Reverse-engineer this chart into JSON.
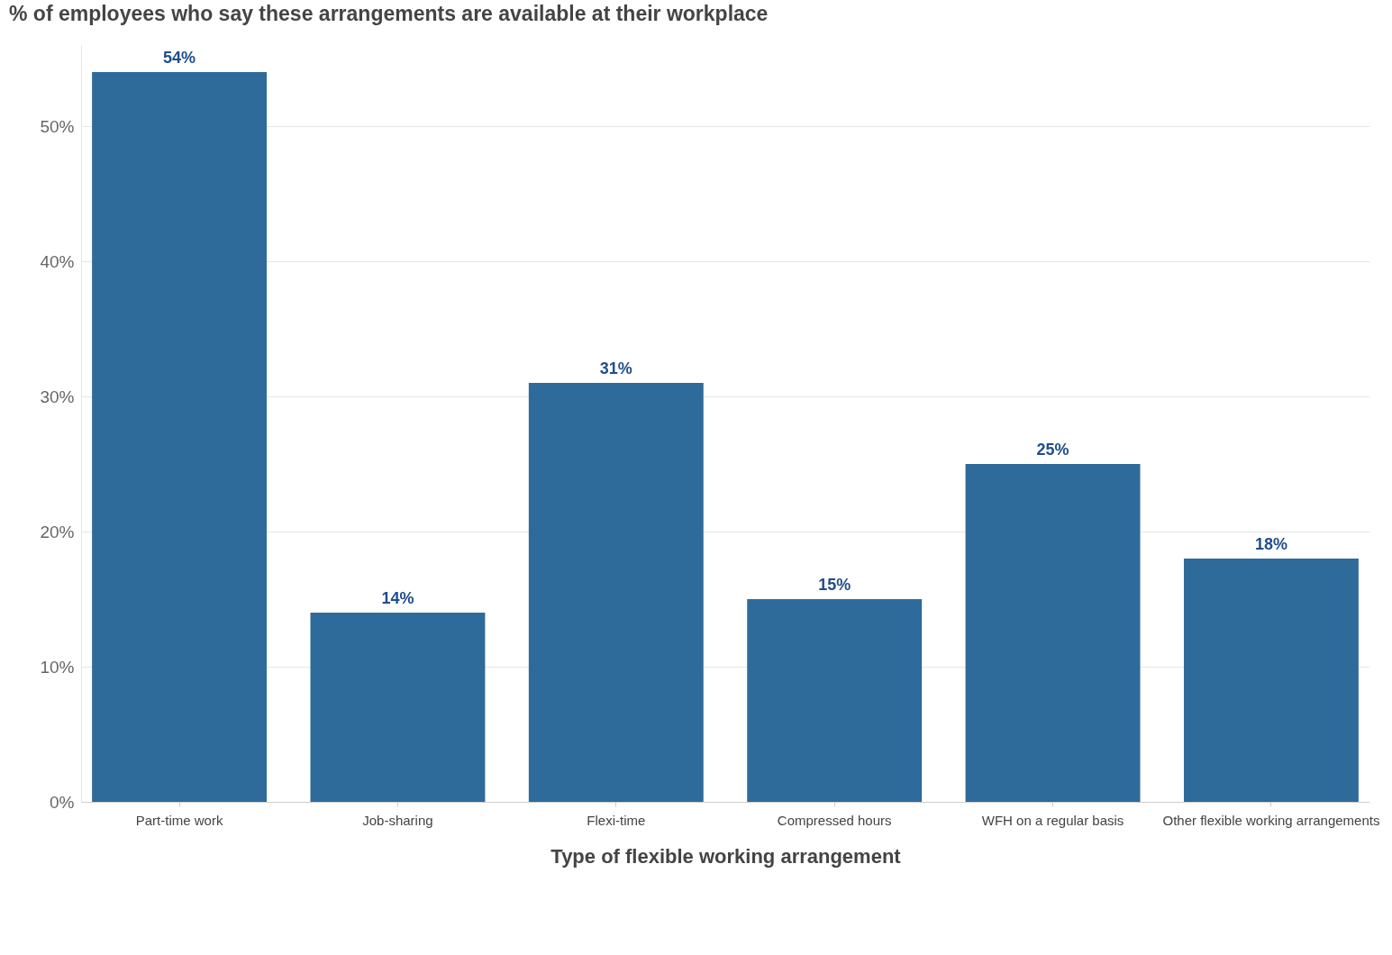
{
  "chart_data": {
    "type": "bar",
    "title": "% of employees who say these arrangements are available at their workplace",
    "xlabel": "Type of flexible working arrangement",
    "categories": [
      "Part-time work",
      "Job-sharing",
      "Flexi-time",
      "Compressed hours",
      "WFH on a regular basis",
      "Other flexible working arrangements"
    ],
    "values": [
      54,
      14,
      31,
      15,
      25,
      18
    ],
    "value_labels": [
      "54%",
      "14%",
      "31%",
      "15%",
      "25%",
      "18%"
    ],
    "color": "#2e6a9a",
    "ylim": [
      0,
      56
    ],
    "yticks": [
      {
        "value": 0,
        "label": "0%"
      },
      {
        "value": 10,
        "label": "10%"
      },
      {
        "value": 20,
        "label": "20%"
      },
      {
        "value": 30,
        "label": "30%"
      },
      {
        "value": 40,
        "label": "40%"
      },
      {
        "value": 50,
        "label": "50%"
      }
    ],
    "grid": "y"
  }
}
